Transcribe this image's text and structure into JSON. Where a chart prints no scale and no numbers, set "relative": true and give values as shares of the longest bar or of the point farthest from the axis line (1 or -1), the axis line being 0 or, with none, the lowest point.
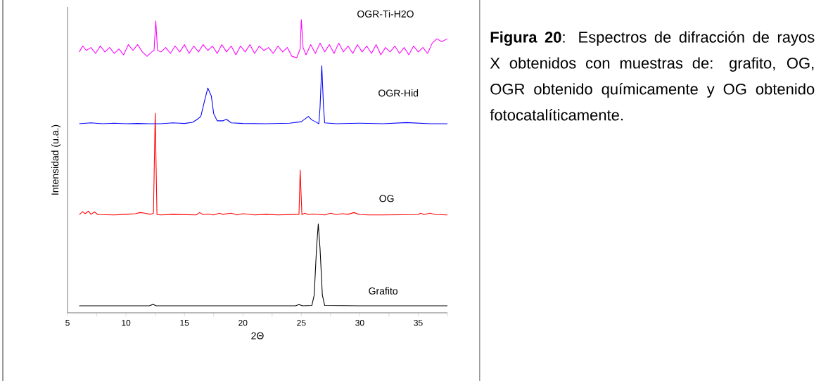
{
  "chart_data": {
    "type": "line",
    "relative": true,
    "xlabel": "2Θ",
    "ylabel": "Intensidad (u.a.)",
    "xlim": [
      5,
      37.5
    ],
    "xticks": [
      5,
      {
        "value": 7.5,
        "label": null
      },
      10,
      {
        "value": 12.5,
        "label": null
      },
      15,
      {
        "value": 17.5,
        "label": null
      },
      20,
      {
        "value": 22.5,
        "label": null
      },
      25,
      {
        "value": 27.5,
        "label": null
      },
      30,
      {
        "value": 32.5,
        "label": null
      },
      35,
      {
        "value": 37.5,
        "label": null
      }
    ],
    "series": [
      {
        "name": "Grafito",
        "color": "#000000",
        "x": [
          6,
          8,
          10,
          12,
          12.3,
          12.6,
          15,
          20,
          24.5,
          24.8,
          25.1,
          25.9,
          26.1,
          26.3,
          26.45,
          26.6,
          26.8,
          27.0,
          30,
          37.5
        ],
        "values": [
          0.024,
          0.024,
          0.024,
          0.024,
          0.029,
          0.024,
          0.024,
          0.024,
          0.024,
          0.028,
          0.024,
          0.025,
          0.06,
          0.22,
          0.303,
          0.22,
          0.06,
          0.025,
          0.024,
          0.024
        ]
      },
      {
        "name": "OG",
        "color": "#ff0000",
        "x": [
          6,
          6.3,
          6.5,
          6.8,
          7.0,
          7.3,
          7.6,
          9,
          10,
          10.8,
          11.2,
          11.6,
          12.1,
          12.35,
          12.5,
          12.65,
          13,
          14,
          16,
          16.3,
          16.6,
          17,
          17.5,
          18,
          18.3,
          19,
          19.5,
          20,
          21,
          22,
          23,
          24.8,
          24.9,
          25.05,
          25.3,
          25.6,
          26,
          27,
          27.5,
          28,
          28.5,
          29,
          29.5,
          30,
          30.8,
          32,
          35,
          35.2,
          35.5,
          36,
          36.5,
          37.5
        ],
        "values": [
          0.335,
          0.345,
          0.338,
          0.347,
          0.336,
          0.344,
          0.335,
          0.334,
          0.336,
          0.338,
          0.342,
          0.34,
          0.336,
          0.34,
          0.681,
          0.335,
          0.334,
          0.336,
          0.334,
          0.342,
          0.335,
          0.337,
          0.334,
          0.34,
          0.336,
          0.34,
          0.334,
          0.338,
          0.334,
          0.336,
          0.334,
          0.336,
          0.487,
          0.335,
          0.34,
          0.335,
          0.337,
          0.334,
          0.34,
          0.335,
          0.338,
          0.336,
          0.342,
          0.335,
          0.334,
          0.334,
          0.335,
          0.34,
          0.335,
          0.34,
          0.335,
          0.334
        ]
      },
      {
        "name": "OGR-Hid",
        "color": "#0000ff",
        "x": [
          6,
          7,
          8,
          9,
          10,
          11,
          12,
          13,
          14,
          15,
          15.7,
          16.1,
          16.4,
          16.7,
          17.0,
          17.3,
          17.5,
          17.8,
          18.3,
          18.6,
          19,
          20,
          22,
          24,
          25,
          25.6,
          25.9,
          26.2,
          26.5,
          26.6,
          26.75,
          26.9,
          27.0,
          28,
          30,
          32,
          34,
          36,
          37.5
        ],
        "values": [
          0.645,
          0.648,
          0.645,
          0.647,
          0.645,
          0.646,
          0.645,
          0.645,
          0.648,
          0.646,
          0.65,
          0.66,
          0.67,
          0.72,
          0.767,
          0.74,
          0.68,
          0.655,
          0.655,
          0.66,
          0.648,
          0.646,
          0.645,
          0.647,
          0.652,
          0.67,
          0.658,
          0.652,
          0.645,
          0.7,
          0.843,
          0.7,
          0.648,
          0.645,
          0.647,
          0.645,
          0.649,
          0.645,
          0.645
        ]
      },
      {
        "name": "OGR-Ti-H2O",
        "color": "#ff00ff",
        "x": [
          6,
          6.3,
          6.6,
          7,
          7.4,
          7.8,
          8.2,
          8.6,
          9.0,
          9.4,
          9.8,
          10.2,
          10.6,
          11,
          11.4,
          11.8,
          12.2,
          12.4,
          12.55,
          12.7,
          13,
          13.4,
          13.8,
          14.2,
          14.6,
          15,
          15.4,
          15.8,
          16.2,
          16.6,
          17,
          17.4,
          17.8,
          18.2,
          18.6,
          19,
          19.4,
          19.8,
          20.2,
          20.6,
          21,
          21.4,
          21.8,
          22.2,
          22.6,
          23,
          23.4,
          23.8,
          24.2,
          24.6,
          24.9,
          25.0,
          25.15,
          25.4,
          25.8,
          26.2,
          26.6,
          27,
          27.4,
          27.8,
          28.2,
          28.6,
          29,
          29.4,
          29.8,
          30.2,
          30.6,
          31,
          31.4,
          31.8,
          32.2,
          32.6,
          33,
          33.4,
          33.8,
          34.2,
          34.6,
          35,
          35.4,
          35.8,
          36.2,
          36.6,
          37,
          37.5
        ],
        "values": [
          0.89,
          0.91,
          0.895,
          0.905,
          0.885,
          0.91,
          0.89,
          0.905,
          0.885,
          0.9,
          0.88,
          0.915,
          0.895,
          0.915,
          0.89,
          0.875,
          0.89,
          0.895,
          0.996,
          0.895,
          0.89,
          0.905,
          0.885,
          0.91,
          0.89,
          0.915,
          0.885,
          0.91,
          0.89,
          0.915,
          0.895,
          0.91,
          0.885,
          0.915,
          0.89,
          0.91,
          0.88,
          0.91,
          0.89,
          0.915,
          0.885,
          0.91,
          0.895,
          0.905,
          0.885,
          0.91,
          0.89,
          0.905,
          0.875,
          0.87,
          0.9,
          1.0,
          0.905,
          0.88,
          0.915,
          0.885,
          0.92,
          0.89,
          0.915,
          0.885,
          0.92,
          0.89,
          0.91,
          0.885,
          0.915,
          0.89,
          0.91,
          0.885,
          0.915,
          0.88,
          0.905,
          0.89,
          0.91,
          0.885,
          0.905,
          0.88,
          0.91,
          0.89,
          0.905,
          0.885,
          0.92,
          0.935,
          0.925,
          0.935
        ]
      }
    ],
    "annotations": [
      "**Figura 20**: Espectros de difracción de rayos X obtenidos con muestras de: grafito, OG, OGR obtenido químicamente y OG obtenido fotocatalíticamente."
    ]
  }
}
